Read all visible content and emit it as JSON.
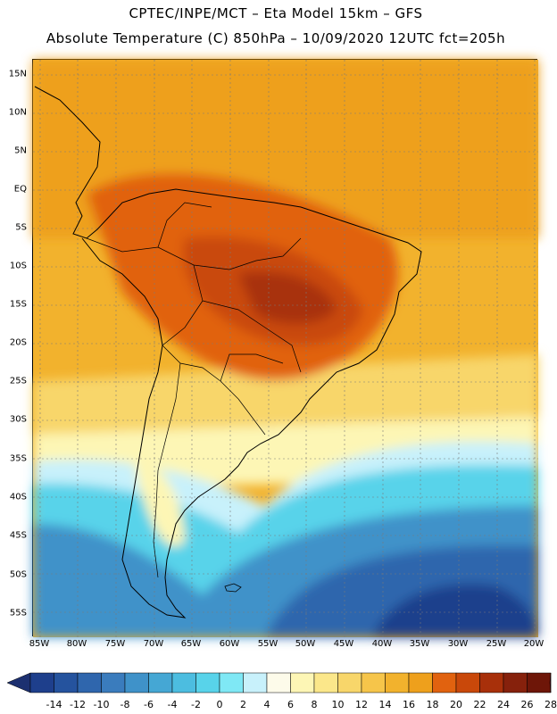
{
  "header": {
    "line1": "CPTEC/INPE/MCT –  Eta Model 15km – GFS",
    "line2": "Absolute Temperature (C) 850hPa – 10/09/2020 12UTC fct=205h"
  },
  "map": {
    "lat_labels": [
      "15N",
      "10N",
      "5N",
      "EQ",
      "5S",
      "10S",
      "15S",
      "20S",
      "25S",
      "30S",
      "35S",
      "40S",
      "45S",
      "50S",
      "55S"
    ],
    "lon_labels": [
      "85W",
      "80W",
      "75W",
      "70W",
      "65W",
      "60W",
      "55W",
      "50W",
      "45W",
      "40W",
      "35W",
      "30W",
      "25W",
      "20W"
    ]
  },
  "colorbar": {
    "labels": [
      "-14",
      "-12",
      "-10",
      "-8",
      "-6",
      "-4",
      "-2",
      "0",
      "2",
      "4",
      "6",
      "8",
      "10",
      "12",
      "14",
      "16",
      "18",
      "20",
      "22",
      "24",
      "26",
      "28"
    ],
    "colors": [
      "#1e3f8c",
      "#25539e",
      "#2f66ad",
      "#3a7cbd",
      "#3f92c9",
      "#45a7d4",
      "#4cbde0",
      "#58d3ea",
      "#7fe8f5",
      "#c8f1fb",
      "#fdfbea",
      "#fdf6b5",
      "#fbe78a",
      "#f8d66a",
      "#f6c54a",
      "#f2b22d",
      "#eea01c",
      "#e1620f",
      "#c9480a",
      "#a8300a",
      "#86210c",
      "#6e1608"
    ]
  }
}
